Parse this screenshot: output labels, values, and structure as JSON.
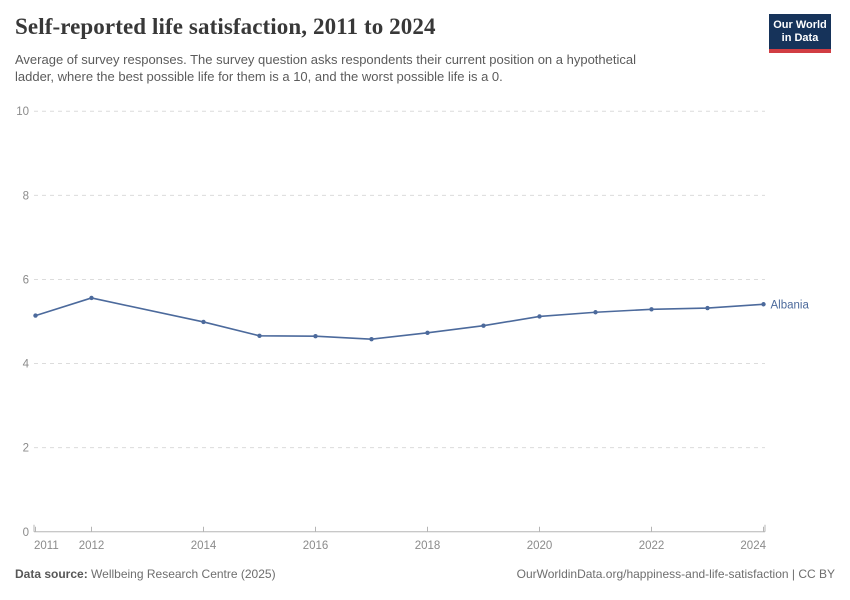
{
  "header": {
    "title": "Self-reported life satisfaction, 2011 to 2024",
    "subtitle_line1": "Average of survey responses. The survey question asks respondents their current position on a hypothetical",
    "subtitle_line2": "ladder, where the best possible life for them is a 10, and the worst possible life is a 0.",
    "logo": {
      "line1": "Our World",
      "line2": "in Data",
      "bg_color": "#16335a",
      "stripe_color": "#d13d43"
    }
  },
  "chart_data": {
    "type": "line",
    "title": "Self-reported life satisfaction, 2011 to 2024",
    "xlabel": "",
    "ylabel": "",
    "ylim": [
      0,
      10
    ],
    "yticks": [
      0,
      2,
      4,
      6,
      8,
      10
    ],
    "xticks": [
      2011,
      2012,
      2014,
      2016,
      2018,
      2020,
      2022,
      2024
    ],
    "xrange": [
      2011,
      2024
    ],
    "grid": "horizontal-dashed",
    "legend_position": "line-end-label",
    "colors": {
      "gridline": "#dcdcdc",
      "axis": "#b5b5b5",
      "tick_label": "#8b8b8b",
      "series": "#4c6a9c"
    },
    "series": [
      {
        "name": "Albania",
        "color": "#4c6a9c",
        "x": [
          2011,
          2012,
          2014,
          2015,
          2016,
          2017,
          2018,
          2019,
          2020,
          2021,
          2022,
          2023,
          2024
        ],
        "values": [
          5.14,
          5.56,
          4.99,
          4.66,
          4.65,
          4.58,
          4.73,
          4.9,
          5.12,
          5.22,
          5.29,
          5.32,
          5.41
        ]
      }
    ]
  },
  "footer": {
    "source_label": "Data source:",
    "source_value": " Wellbeing Research Centre (2025)",
    "attribution": "OurWorldinData.org/happiness-and-life-satisfaction | CC BY"
  }
}
